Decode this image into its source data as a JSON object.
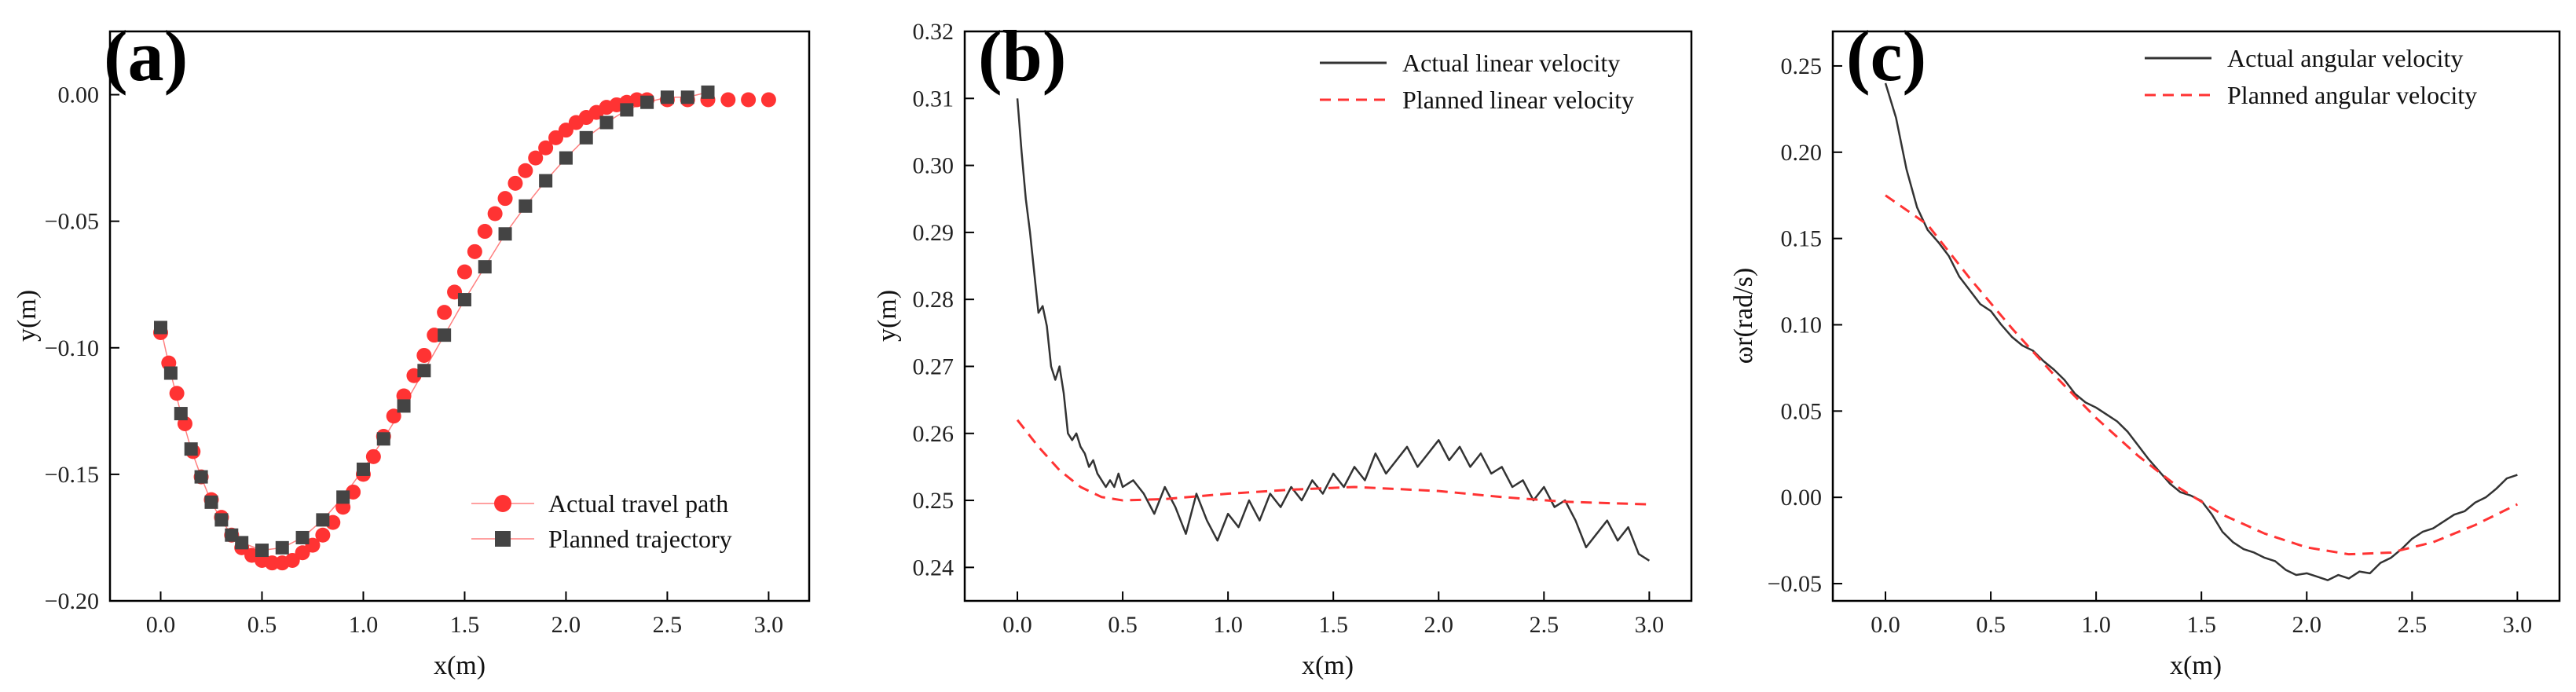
{
  "colors": {
    "actual": "#333333",
    "planned": "#ff3333",
    "axis": "#000000"
  },
  "chart_data": [
    {
      "type": "scatter",
      "panel_label": "(a)",
      "xlabel": "x(m)",
      "ylabel": "y(m)",
      "xlim": [
        -0.25,
        3.2
      ],
      "ylim": [
        -0.2,
        0.025
      ],
      "xticks": [
        0.0,
        0.5,
        1.0,
        1.5,
        2.0,
        2.5,
        3.0
      ],
      "xtick_labels": [
        "0.0",
        "0.5",
        "1.0",
        "1.5",
        "2.0",
        "2.5",
        "3.0"
      ],
      "yticks": [
        -0.2,
        -0.15,
        -0.1,
        -0.05,
        0.0
      ],
      "ytick_labels": [
        "−0.20",
        "−0.15",
        "−0.10",
        "−0.05",
        "0.00"
      ],
      "legend_position": "bottom-right",
      "series": [
        {
          "name": "Actual travel path",
          "marker": "circle",
          "x": [
            0.0,
            0.04,
            0.08,
            0.12,
            0.16,
            0.2,
            0.25,
            0.3,
            0.35,
            0.4,
            0.45,
            0.5,
            0.55,
            0.6,
            0.65,
            0.7,
            0.75,
            0.8,
            0.85,
            0.9,
            0.95,
            1.0,
            1.05,
            1.1,
            1.15,
            1.2,
            1.25,
            1.3,
            1.35,
            1.4,
            1.45,
            1.5,
            1.55,
            1.6,
            1.65,
            1.7,
            1.75,
            1.8,
            1.85,
            1.9,
            1.95,
            2.0,
            2.05,
            2.1,
            2.15,
            2.2,
            2.25,
            2.3,
            2.35,
            2.4,
            2.5,
            2.6,
            2.7,
            2.8,
            2.9,
            3.0
          ],
          "y": [
            -0.094,
            -0.106,
            -0.118,
            -0.13,
            -0.141,
            -0.151,
            -0.16,
            -0.167,
            -0.174,
            -0.179,
            -0.182,
            -0.184,
            -0.185,
            -0.185,
            -0.184,
            -0.181,
            -0.178,
            -0.174,
            -0.169,
            -0.163,
            -0.157,
            -0.15,
            -0.143,
            -0.135,
            -0.127,
            -0.119,
            -0.111,
            -0.103,
            -0.095,
            -0.086,
            -0.078,
            -0.07,
            -0.062,
            -0.054,
            -0.047,
            -0.041,
            -0.035,
            -0.03,
            -0.025,
            -0.021,
            -0.017,
            -0.014,
            -0.011,
            -0.009,
            -0.007,
            -0.005,
            -0.004,
            -0.003,
            -0.002,
            -0.002,
            -0.002,
            -0.002,
            -0.002,
            -0.002,
            -0.002,
            -0.002
          ]
        },
        {
          "name": "Planned trajectory",
          "marker": "square",
          "x": [
            0.0,
            0.05,
            0.1,
            0.15,
            0.2,
            0.25,
            0.3,
            0.35,
            0.4,
            0.5,
            0.6,
            0.7,
            0.8,
            0.9,
            1.0,
            1.1,
            1.2,
            1.3,
            1.4,
            1.5,
            1.6,
            1.7,
            1.8,
            1.9,
            2.0,
            2.1,
            2.2,
            2.3,
            2.4,
            2.5,
            2.6,
            2.7
          ],
          "y": [
            -0.092,
            -0.11,
            -0.126,
            -0.14,
            -0.151,
            -0.161,
            -0.168,
            -0.174,
            -0.177,
            -0.18,
            -0.179,
            -0.175,
            -0.168,
            -0.159,
            -0.148,
            -0.136,
            -0.123,
            -0.109,
            -0.095,
            -0.081,
            -0.068,
            -0.055,
            -0.044,
            -0.034,
            -0.025,
            -0.017,
            -0.011,
            -0.006,
            -0.003,
            -0.001,
            -0.001,
            0.001
          ]
        }
      ]
    },
    {
      "type": "line",
      "panel_label": "(b)",
      "xlabel": "x(m)",
      "ylabel": "y(m)",
      "xlim": [
        -0.25,
        3.2
      ],
      "ylim": [
        0.235,
        0.32
      ],
      "xticks": [
        0.0,
        0.5,
        1.0,
        1.5,
        2.0,
        2.5,
        3.0
      ],
      "xtick_labels": [
        "0.0",
        "0.5",
        "1.0",
        "1.5",
        "2.0",
        "2.5",
        "3.0"
      ],
      "yticks": [
        0.24,
        0.25,
        0.26,
        0.27,
        0.28,
        0.29,
        0.3,
        0.31,
        0.32
      ],
      "ytick_labels": [
        "0.24",
        "0.25",
        "0.26",
        "0.27",
        "0.28",
        "0.29",
        "0.30",
        "0.31",
        "0.32"
      ],
      "legend_position": "top-right",
      "series": [
        {
          "name": "Actual linear velocity",
          "style": "solid",
          "x": [
            0.0,
            0.02,
            0.04,
            0.06,
            0.08,
            0.1,
            0.12,
            0.14,
            0.16,
            0.18,
            0.2,
            0.22,
            0.24,
            0.26,
            0.28,
            0.3,
            0.32,
            0.34,
            0.36,
            0.38,
            0.4,
            0.42,
            0.44,
            0.46,
            0.48,
            0.5,
            0.55,
            0.6,
            0.65,
            0.7,
            0.75,
            0.8,
            0.85,
            0.9,
            0.95,
            1.0,
            1.05,
            1.1,
            1.15,
            1.2,
            1.25,
            1.3,
            1.35,
            1.4,
            1.45,
            1.5,
            1.55,
            1.6,
            1.65,
            1.7,
            1.75,
            1.8,
            1.85,
            1.9,
            1.95,
            2.0,
            2.05,
            2.1,
            2.15,
            2.2,
            2.25,
            2.3,
            2.35,
            2.4,
            2.45,
            2.5,
            2.55,
            2.6,
            2.65,
            2.7,
            2.75,
            2.8,
            2.85,
            2.9,
            2.95,
            3.0
          ],
          "y": [
            0.31,
            0.302,
            0.295,
            0.29,
            0.284,
            0.278,
            0.279,
            0.276,
            0.27,
            0.268,
            0.27,
            0.266,
            0.26,
            0.259,
            0.26,
            0.258,
            0.257,
            0.255,
            0.256,
            0.254,
            0.253,
            0.252,
            0.253,
            0.252,
            0.254,
            0.252,
            0.253,
            0.251,
            0.248,
            0.252,
            0.249,
            0.245,
            0.251,
            0.247,
            0.244,
            0.248,
            0.246,
            0.25,
            0.247,
            0.251,
            0.249,
            0.252,
            0.25,
            0.253,
            0.251,
            0.254,
            0.252,
            0.255,
            0.253,
            0.257,
            0.254,
            0.256,
            0.258,
            0.255,
            0.257,
            0.259,
            0.256,
            0.258,
            0.255,
            0.257,
            0.254,
            0.255,
            0.252,
            0.253,
            0.25,
            0.252,
            0.249,
            0.25,
            0.247,
            0.243,
            0.245,
            0.247,
            0.244,
            0.246,
            0.242,
            0.241
          ]
        },
        {
          "name": "Planned linear velocity",
          "style": "dashed",
          "x": [
            0.0,
            0.1,
            0.2,
            0.3,
            0.4,
            0.5,
            0.7,
            1.0,
            1.3,
            1.6,
            2.0,
            2.3,
            2.6,
            3.0
          ],
          "y": [
            0.262,
            0.258,
            0.2545,
            0.252,
            0.2505,
            0.25,
            0.2502,
            0.251,
            0.2516,
            0.252,
            0.2514,
            0.2505,
            0.2498,
            0.2494
          ]
        }
      ]
    },
    {
      "type": "line",
      "panel_label": "(c)",
      "xlabel": "x(m)",
      "ylabel": "ωr(rad/s)",
      "xlim": [
        -0.25,
        3.2
      ],
      "ylim": [
        -0.06,
        0.27
      ],
      "xticks": [
        0.0,
        0.5,
        1.0,
        1.5,
        2.0,
        2.5,
        3.0
      ],
      "xtick_labels": [
        "0.0",
        "0.5",
        "1.0",
        "1.5",
        "2.0",
        "2.5",
        "3.0"
      ],
      "yticks": [
        -0.05,
        0.0,
        0.05,
        0.1,
        0.15,
        0.2,
        0.25
      ],
      "ytick_labels": [
        "−0.05",
        "0.00",
        "0.05",
        "0.10",
        "0.15",
        "0.20",
        "0.25"
      ],
      "legend_position": "top-right",
      "series": [
        {
          "name": "Actual angular velocity",
          "style": "solid",
          "x": [
            0.0,
            0.05,
            0.1,
            0.15,
            0.2,
            0.25,
            0.3,
            0.35,
            0.4,
            0.45,
            0.5,
            0.55,
            0.6,
            0.65,
            0.7,
            0.75,
            0.8,
            0.85,
            0.9,
            0.95,
            1.0,
            1.05,
            1.1,
            1.15,
            1.2,
            1.25,
            1.3,
            1.35,
            1.4,
            1.45,
            1.5,
            1.55,
            1.6,
            1.65,
            1.7,
            1.75,
            1.8,
            1.85,
            1.9,
            1.95,
            2.0,
            2.05,
            2.1,
            2.15,
            2.2,
            2.25,
            2.3,
            2.35,
            2.4,
            2.45,
            2.5,
            2.55,
            2.6,
            2.65,
            2.7,
            2.75,
            2.8,
            2.85,
            2.9,
            2.95,
            3.0
          ],
          "y": [
            0.24,
            0.22,
            0.19,
            0.168,
            0.155,
            0.148,
            0.14,
            0.128,
            0.12,
            0.112,
            0.108,
            0.1,
            0.093,
            0.088,
            0.085,
            0.079,
            0.074,
            0.068,
            0.06,
            0.055,
            0.052,
            0.048,
            0.044,
            0.038,
            0.03,
            0.022,
            0.015,
            0.008,
            0.003,
            0.001,
            -0.002,
            -0.01,
            -0.02,
            -0.026,
            -0.03,
            -0.032,
            -0.035,
            -0.037,
            -0.042,
            -0.045,
            -0.044,
            -0.046,
            -0.048,
            -0.045,
            -0.047,
            -0.043,
            -0.044,
            -0.038,
            -0.035,
            -0.03,
            -0.024,
            -0.02,
            -0.018,
            -0.014,
            -0.01,
            -0.008,
            -0.003,
            0.0,
            0.005,
            0.011,
            0.013
          ]
        },
        {
          "name": "Planned angular velocity",
          "style": "dashed",
          "x": [
            0.0,
            0.2,
            0.4,
            0.6,
            0.8,
            1.0,
            1.2,
            1.4,
            1.6,
            1.8,
            2.0,
            2.2,
            2.4,
            2.6,
            2.8,
            3.0
          ],
          "y": [
            0.175,
            0.158,
            0.127,
            0.098,
            0.071,
            0.046,
            0.024,
            0.005,
            -0.01,
            -0.021,
            -0.029,
            -0.033,
            -0.032,
            -0.026,
            -0.016,
            -0.004
          ]
        }
      ]
    }
  ]
}
